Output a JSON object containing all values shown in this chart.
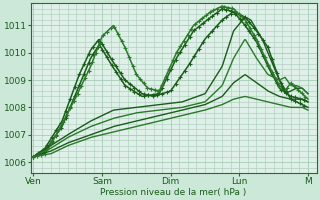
{
  "bg_color": "#cce8d8",
  "plot_bg": "#dff0e8",
  "grid_color": "#a8ccb8",
  "ylabel": "Pression niveau de la mer( hPa )",
  "yticks": [
    1006,
    1007,
    1008,
    1009,
    1010,
    1011
  ],
  "ylim": [
    1005.6,
    1011.8
  ],
  "xtick_labels": [
    "Ven",
    "Sam",
    "Dim",
    "Lun",
    "M"
  ],
  "xtick_positions": [
    0,
    24,
    48,
    72,
    96
  ],
  "xlim": [
    -1,
    99
  ],
  "lines": [
    {
      "waypoints": [
        [
          0,
          1006.2
        ],
        [
          4,
          1006.5
        ],
        [
          10,
          1007.5
        ],
        [
          16,
          1009.2
        ],
        [
          20,
          1010.1
        ],
        [
          23,
          1010.5
        ],
        [
          27,
          1009.8
        ],
        [
          32,
          1009.0
        ],
        [
          38,
          1008.5
        ],
        [
          42,
          1008.4
        ],
        [
          48,
          1008.6
        ],
        [
          54,
          1009.5
        ],
        [
          60,
          1010.5
        ],
        [
          66,
          1011.2
        ],
        [
          70,
          1011.5
        ],
        [
          74,
          1011.3
        ],
        [
          78,
          1010.8
        ],
        [
          82,
          1010.2
        ],
        [
          86,
          1009.0
        ],
        [
          90,
          1008.3
        ],
        [
          94,
          1008.1
        ],
        [
          96,
          1008.0
        ]
      ],
      "color": "#1a5c1a",
      "lw": 1.1,
      "ls": "-",
      "marker": "+",
      "ms": 3,
      "markevery": 5
    },
    {
      "waypoints": [
        [
          0,
          1006.2
        ],
        [
          4,
          1006.4
        ],
        [
          10,
          1007.3
        ],
        [
          16,
          1008.8
        ],
        [
          20,
          1009.8
        ],
        [
          23,
          1010.3
        ],
        [
          27,
          1009.6
        ],
        [
          32,
          1008.8
        ],
        [
          38,
          1008.4
        ],
        [
          44,
          1008.5
        ],
        [
          50,
          1009.8
        ],
        [
          56,
          1010.8
        ],
        [
          62,
          1011.3
        ],
        [
          66,
          1011.6
        ],
        [
          70,
          1011.5
        ],
        [
          74,
          1011.0
        ],
        [
          78,
          1010.4
        ],
        [
          82,
          1009.5
        ],
        [
          86,
          1008.7
        ],
        [
          90,
          1008.4
        ],
        [
          94,
          1008.3
        ],
        [
          96,
          1008.2
        ]
      ],
      "color": "#1a5c1a",
      "lw": 1.1,
      "ls": "-",
      "marker": "+",
      "ms": 3,
      "markevery": 5
    },
    {
      "waypoints": [
        [
          0,
          1006.2
        ],
        [
          4,
          1006.3
        ],
        [
          8,
          1007.0
        ],
        [
          14,
          1008.2
        ],
        [
          20,
          1009.5
        ],
        [
          24,
          1010.6
        ],
        [
          28,
          1011.0
        ],
        [
          32,
          1010.2
        ],
        [
          36,
          1009.2
        ],
        [
          40,
          1008.7
        ],
        [
          44,
          1008.6
        ],
        [
          50,
          1010.0
        ],
        [
          56,
          1011.0
        ],
        [
          62,
          1011.5
        ],
        [
          66,
          1011.7
        ],
        [
          70,
          1011.6
        ],
        [
          74,
          1011.2
        ],
        [
          78,
          1010.5
        ],
        [
          82,
          1009.6
        ],
        [
          86,
          1008.8
        ],
        [
          88,
          1008.6
        ],
        [
          90,
          1008.9
        ],
        [
          92,
          1008.7
        ],
        [
          94,
          1008.5
        ],
        [
          96,
          1008.3
        ]
      ],
      "color": "#2a7a2a",
      "lw": 1.1,
      "ls": "-",
      "marker": "+",
      "ms": 3,
      "markevery": 4
    },
    {
      "waypoints": [
        [
          0,
          1006.2
        ],
        [
          6,
          1006.6
        ],
        [
          12,
          1007.0
        ],
        [
          20,
          1007.5
        ],
        [
          28,
          1007.9
        ],
        [
          36,
          1008.0
        ],
        [
          44,
          1008.1
        ],
        [
          52,
          1008.2
        ],
        [
          60,
          1008.5
        ],
        [
          66,
          1009.5
        ],
        [
          70,
          1010.8
        ],
        [
          74,
          1011.3
        ],
        [
          76,
          1011.2
        ],
        [
          80,
          1010.5
        ],
        [
          84,
          1009.5
        ],
        [
          88,
          1008.5
        ],
        [
          90,
          1008.6
        ],
        [
          92,
          1008.7
        ],
        [
          94,
          1008.7
        ],
        [
          96,
          1008.5
        ]
      ],
      "color": "#1a5c1a",
      "lw": 1.0,
      "ls": "-",
      "marker": null,
      "ms": 0,
      "markevery": null
    },
    {
      "waypoints": [
        [
          0,
          1006.2
        ],
        [
          6,
          1006.5
        ],
        [
          12,
          1006.9
        ],
        [
          20,
          1007.3
        ],
        [
          28,
          1007.6
        ],
        [
          36,
          1007.8
        ],
        [
          44,
          1007.9
        ],
        [
          52,
          1008.0
        ],
        [
          60,
          1008.2
        ],
        [
          66,
          1008.8
        ],
        [
          70,
          1009.8
        ],
        [
          74,
          1010.5
        ],
        [
          78,
          1009.8
        ],
        [
          82,
          1009.2
        ],
        [
          86,
          1009.0
        ],
        [
          88,
          1009.1
        ],
        [
          90,
          1008.8
        ],
        [
          92,
          1008.8
        ],
        [
          94,
          1008.7
        ],
        [
          96,
          1008.5
        ]
      ],
      "color": "#2a7a2a",
      "lw": 1.0,
      "ls": "-",
      "marker": null,
      "ms": 0,
      "markevery": null
    },
    {
      "waypoints": [
        [
          0,
          1006.2
        ],
        [
          6,
          1006.4
        ],
        [
          12,
          1006.7
        ],
        [
          20,
          1007.0
        ],
        [
          28,
          1007.3
        ],
        [
          36,
          1007.5
        ],
        [
          44,
          1007.7
        ],
        [
          52,
          1007.9
        ],
        [
          60,
          1008.1
        ],
        [
          66,
          1008.4
        ],
        [
          70,
          1008.9
        ],
        [
          74,
          1009.2
        ],
        [
          78,
          1008.9
        ],
        [
          82,
          1008.6
        ],
        [
          86,
          1008.4
        ],
        [
          90,
          1008.3
        ],
        [
          94,
          1008.3
        ],
        [
          96,
          1008.2
        ]
      ],
      "color": "#1a5c1a",
      "lw": 1.0,
      "ls": "-",
      "marker": null,
      "ms": 0,
      "markevery": null
    },
    {
      "waypoints": [
        [
          0,
          1006.2
        ],
        [
          6,
          1006.3
        ],
        [
          12,
          1006.6
        ],
        [
          20,
          1006.9
        ],
        [
          28,
          1007.1
        ],
        [
          36,
          1007.3
        ],
        [
          44,
          1007.5
        ],
        [
          52,
          1007.7
        ],
        [
          60,
          1007.9
        ],
        [
          66,
          1008.1
        ],
        [
          70,
          1008.3
        ],
        [
          74,
          1008.4
        ],
        [
          78,
          1008.3
        ],
        [
          82,
          1008.2
        ],
        [
          86,
          1008.1
        ],
        [
          90,
          1008.0
        ],
        [
          94,
          1008.0
        ],
        [
          96,
          1007.9
        ]
      ],
      "color": "#2a7a2a",
      "lw": 1.0,
      "ls": "-",
      "marker": null,
      "ms": 0,
      "markevery": null
    }
  ]
}
